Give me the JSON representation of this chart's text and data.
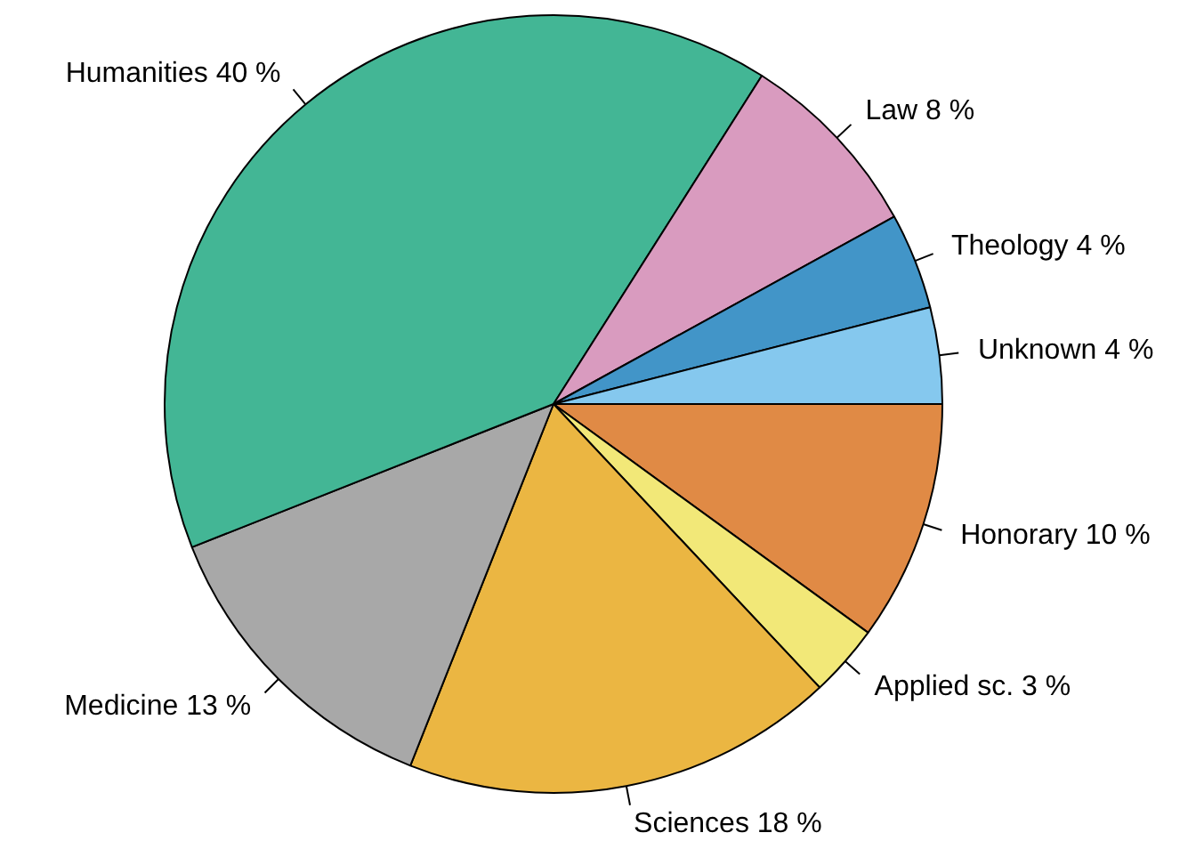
{
  "chart_data": {
    "type": "pie",
    "categories": [
      "Honorary",
      "Applied sc.",
      "Sciences",
      "Medicine",
      "Humanities",
      "Law",
      "Theology",
      "Unknown"
    ],
    "values": [
      10,
      3,
      18,
      13,
      40,
      8,
      4,
      4
    ],
    "value_labels": [
      "10 %",
      "3 %",
      "18 %",
      "13 %",
      "40 %",
      "8 %",
      "4 %",
      "4 %"
    ],
    "colors": [
      "#e08a45",
      "#f2e878",
      "#ebb642",
      "#a8a8a8",
      "#43b695",
      "#d99bbf",
      "#4295c8",
      "#85c8ee"
    ],
    "legend": false
  }
}
